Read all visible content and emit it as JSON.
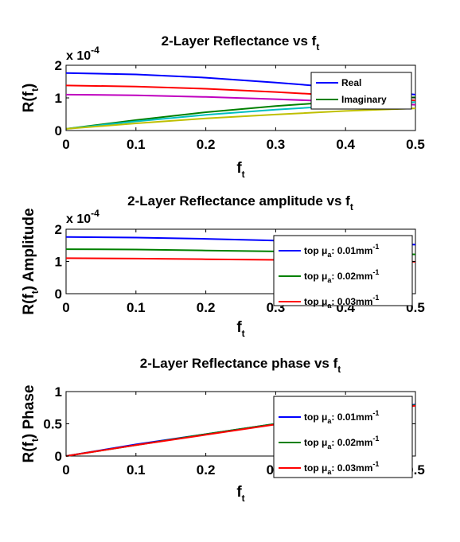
{
  "chart_data": [
    {
      "type": "line",
      "title": "2-Layer Reflectance vs f",
      "title_sub": "t",
      "xlabel": "f",
      "xlabel_sub": "t",
      "ylabel": "R(f",
      "ylabel_sub": "t",
      "ylabel_end": ")",
      "multiplier": "x 10",
      "multiplier_exp": "-4",
      "xlim": [
        0,
        0.5
      ],
      "ylim": [
        0,
        2
      ],
      "xticks": [
        "0",
        "0.1",
        "0.2",
        "0.3",
        "0.4",
        "0.5"
      ],
      "yticks": [
        "0",
        "1",
        "2"
      ],
      "legend_position": "top-right",
      "legend": [
        {
          "label": "Real",
          "color": "#0000ff"
        },
        {
          "label": "Imaginary",
          "color": "#008000"
        }
      ],
      "series": [
        {
          "color": "#0000ff",
          "x": [
            0,
            0.1,
            0.2,
            0.3,
            0.4,
            0.5
          ],
          "y": [
            1.76,
            1.72,
            1.62,
            1.47,
            1.3,
            1.1
          ]
        },
        {
          "color": "#ff0000",
          "x": [
            0,
            0.1,
            0.2,
            0.3,
            0.4,
            0.5
          ],
          "y": [
            1.38,
            1.35,
            1.28,
            1.18,
            1.06,
            0.92
          ]
        },
        {
          "color": "#bf00bf",
          "x": [
            0,
            0.1,
            0.2,
            0.3,
            0.4,
            0.5
          ],
          "y": [
            1.1,
            1.08,
            1.03,
            0.96,
            0.88,
            0.79
          ]
        },
        {
          "color": "#008000",
          "x": [
            0,
            0.1,
            0.2,
            0.3,
            0.4,
            0.5
          ],
          "y": [
            0.05,
            0.32,
            0.56,
            0.75,
            0.9,
            1.02
          ]
        },
        {
          "color": "#00bfbf",
          "x": [
            0,
            0.1,
            0.2,
            0.3,
            0.4,
            0.5
          ],
          "y": [
            0.05,
            0.28,
            0.48,
            0.64,
            0.77,
            0.87
          ]
        },
        {
          "color": "#bfbf00",
          "x": [
            0,
            0.1,
            0.2,
            0.3,
            0.4,
            0.5
          ],
          "y": [
            0.05,
            0.22,
            0.37,
            0.49,
            0.6,
            0.68
          ]
        }
      ]
    },
    {
      "type": "line",
      "title": "2-Layer Reflectance amplitude vs f",
      "title_sub": "t",
      "xlabel": "f",
      "xlabel_sub": "t",
      "ylabel": "R(f",
      "ylabel_sub": "t",
      "ylabel_end": ") Amplitude",
      "multiplier": "x 10",
      "multiplier_exp": "-4",
      "xlim": [
        0,
        0.5
      ],
      "ylim": [
        0,
        2
      ],
      "xticks": [
        "0",
        "0.1",
        "0.2",
        "0.3",
        "0.4",
        "0.5"
      ],
      "yticks": [
        "0",
        "1",
        "2"
      ],
      "legend_position": "top-right",
      "legend": [
        {
          "label": "top μ",
          "sub": "a",
          "unit": ": 0.01mm",
          "sup": "-1",
          "color": "#0000ff"
        },
        {
          "label": "top μ",
          "sub": "a",
          "unit": ": 0.02mm",
          "sup": "-1",
          "color": "#008000"
        },
        {
          "label": "top μ",
          "sub": "a",
          "unit": ": 0.03mm",
          "sup": "-1",
          "color": "#ff0000"
        }
      ],
      "series": [
        {
          "color": "#0000ff",
          "x": [
            0,
            0.1,
            0.2,
            0.3,
            0.4,
            0.5
          ],
          "y": [
            1.76,
            1.74,
            1.7,
            1.65,
            1.59,
            1.52
          ]
        },
        {
          "color": "#008000",
          "x": [
            0,
            0.1,
            0.2,
            0.3,
            0.4,
            0.5
          ],
          "y": [
            1.38,
            1.37,
            1.34,
            1.31,
            1.27,
            1.22
          ]
        },
        {
          "color": "#ff0000",
          "x": [
            0,
            0.1,
            0.2,
            0.3,
            0.4,
            0.5
          ],
          "y": [
            1.1,
            1.09,
            1.07,
            1.05,
            1.02,
            0.99
          ]
        }
      ]
    },
    {
      "type": "line",
      "title": "2-Layer Reflectance phase vs f",
      "title_sub": "t",
      "xlabel": "f",
      "xlabel_sub": "t",
      "ylabel": "R(f",
      "ylabel_sub": "t",
      "ylabel_end": ") Phase",
      "xlim": [
        0,
        0.5
      ],
      "ylim": [
        0,
        1
      ],
      "xticks": [
        "0",
        "0.1",
        "0.2",
        "0.3",
        "0.4",
        "0.5"
      ],
      "yticks": [
        "0",
        "0.5",
        "1"
      ],
      "legend_position": "top-right",
      "legend": [
        {
          "label": "top μ",
          "sub": "a",
          "unit": ": 0.01mm",
          "sup": "-1",
          "color": "#0000ff"
        },
        {
          "label": "top μ",
          "sub": "a",
          "unit": ": 0.02mm",
          "sup": "-1",
          "color": "#008000"
        },
        {
          "label": "top μ",
          "sub": "a",
          "unit": ": 0.03mm",
          "sup": "-1",
          "color": "#ff0000"
        }
      ],
      "series": [
        {
          "color": "#0000ff",
          "x": [
            0,
            0.1,
            0.2,
            0.3,
            0.4,
            0.5
          ],
          "y": [
            0.0,
            0.18,
            0.34,
            0.5,
            0.65,
            0.8
          ]
        },
        {
          "color": "#008000",
          "x": [
            0,
            0.1,
            0.2,
            0.3,
            0.4,
            0.5
          ],
          "y": [
            0.0,
            0.17,
            0.34,
            0.5,
            0.64,
            0.79
          ]
        },
        {
          "color": "#ff0000",
          "x": [
            0,
            0.1,
            0.2,
            0.3,
            0.4,
            0.5
          ],
          "y": [
            0.0,
            0.17,
            0.33,
            0.49,
            0.64,
            0.78
          ]
        }
      ]
    }
  ]
}
